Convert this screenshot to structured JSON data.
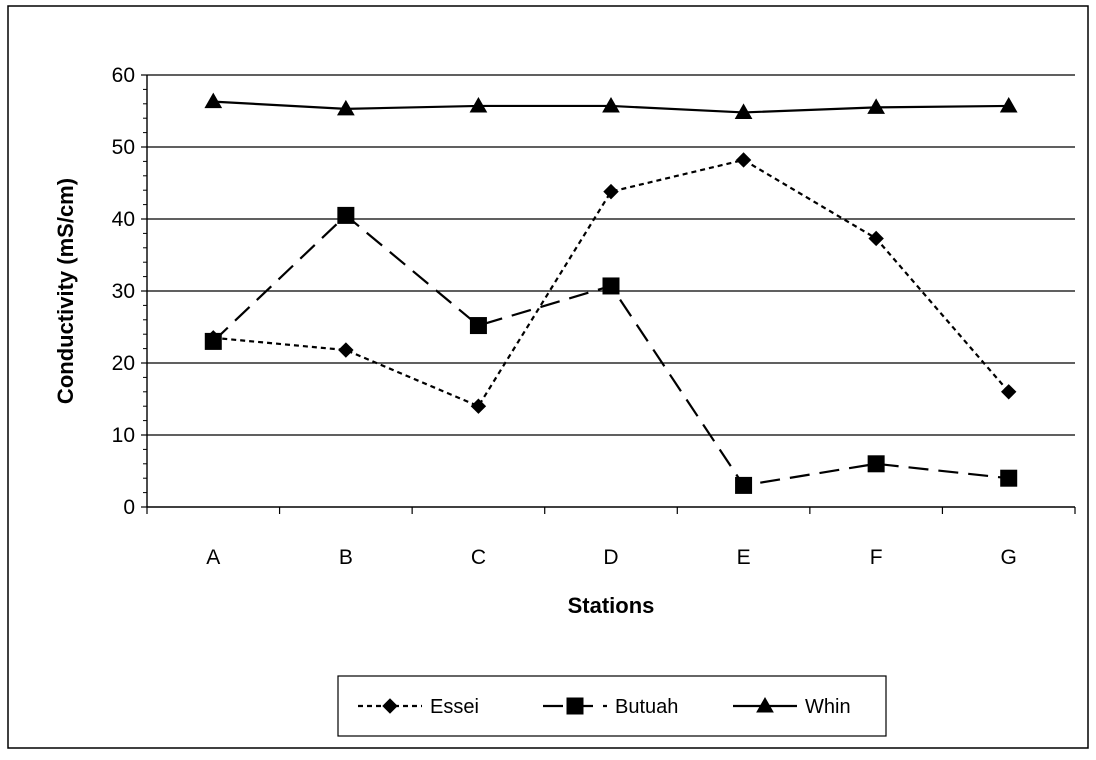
{
  "chart_data": {
    "type": "line",
    "title": "",
    "xlabel": "Stations",
    "ylabel": "Conductivity (mS/cm)",
    "categories": [
      "A",
      "B",
      "C",
      "D",
      "E",
      "F",
      "G"
    ],
    "ylim": [
      0,
      60
    ],
    "yticks": [
      0,
      10,
      20,
      30,
      40,
      50,
      60
    ],
    "grid": "horizontal",
    "legend_position": "bottom",
    "series": [
      {
        "name": "Essei",
        "values": [
          23.5,
          21.8,
          14.0,
          43.8,
          48.2,
          37.3,
          16.0
        ],
        "marker": "diamond",
        "dash": "short-dash",
        "color": "#000000"
      },
      {
        "name": "Butuah",
        "values": [
          23.0,
          40.5,
          25.2,
          30.7,
          3.0,
          6.0,
          4.0
        ],
        "marker": "square",
        "dash": "long-dash",
        "color": "#000000"
      },
      {
        "name": "Whin",
        "values": [
          56.3,
          55.3,
          55.7,
          55.7,
          54.8,
          55.5,
          55.7
        ],
        "marker": "triangle",
        "dash": "solid",
        "color": "#000000"
      }
    ]
  }
}
